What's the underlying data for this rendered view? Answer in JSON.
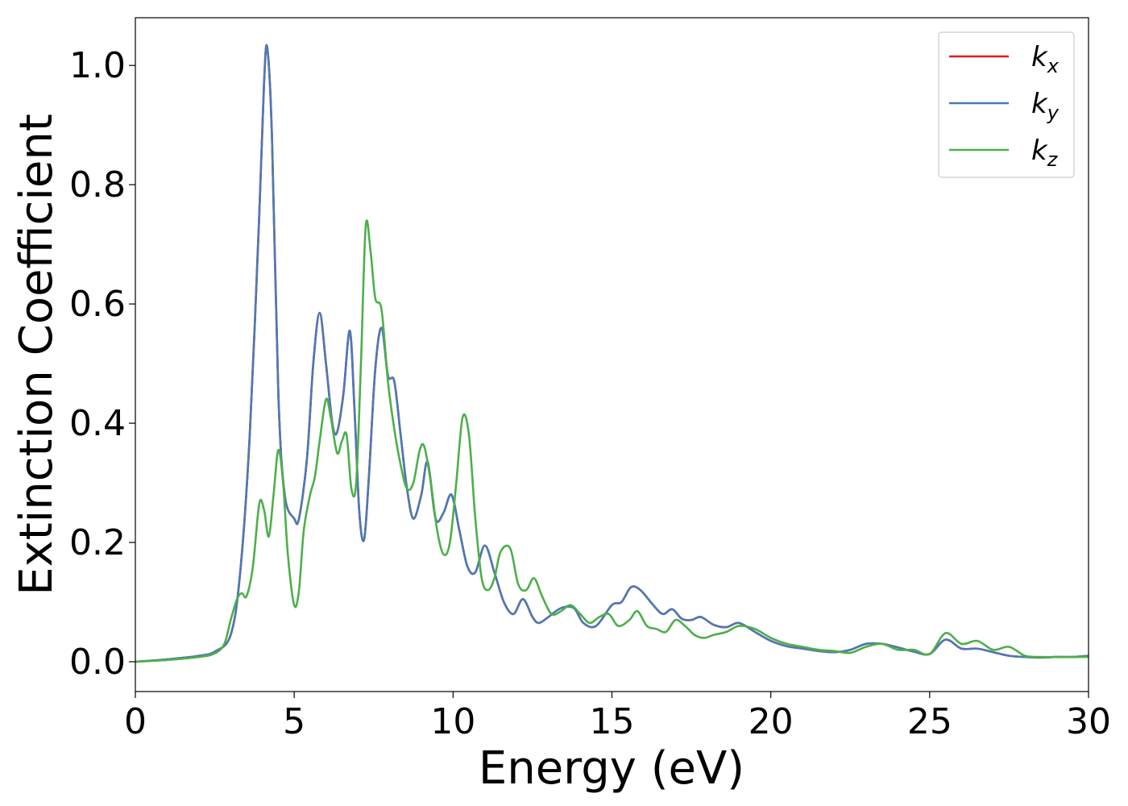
{
  "chart_data": {
    "type": "line",
    "title": "",
    "xlabel": "Energy (eV)",
    "ylabel": "Extinction Coefficient",
    "xlim": [
      0,
      30
    ],
    "ylim": [
      -0.05,
      1.08
    ],
    "xticks": [
      0,
      5,
      10,
      15,
      20,
      25,
      30
    ],
    "xtick_labels": [
      "0",
      "5",
      "10",
      "15",
      "20",
      "25",
      "30"
    ],
    "yticks": [
      0.0,
      0.2,
      0.4,
      0.6,
      0.8,
      1.0
    ],
    "ytick_labels": [
      "0.0",
      "0.2",
      "0.4",
      "0.6",
      "0.8",
      "1.0"
    ],
    "grid": false,
    "legend_position": "top-right",
    "series": [
      {
        "name": "k_x",
        "label_main": "k",
        "label_sub": "x",
        "color": "#e41a1c",
        "x": [
          0,
          1,
          2,
          2.5,
          3,
          3.3,
          3.6,
          3.9,
          4.05,
          4.15,
          4.3,
          4.5,
          4.7,
          5.0,
          5.15,
          5.4,
          5.6,
          5.8,
          6.0,
          6.2,
          6.35,
          6.55,
          6.75,
          6.9,
          7.05,
          7.2,
          7.35,
          7.55,
          7.75,
          7.95,
          8.15,
          8.35,
          8.55,
          8.75,
          9.0,
          9.2,
          9.45,
          9.7,
          9.95,
          10.2,
          10.45,
          10.7,
          11.0,
          11.3,
          11.6,
          11.9,
          12.2,
          12.5,
          12.7,
          13.0,
          13.4,
          13.8,
          14.1,
          14.5,
          15.0,
          15.3,
          15.6,
          15.9,
          16.3,
          16.6,
          16.9,
          17.2,
          17.5,
          17.8,
          18.2,
          18.6,
          19.0,
          19.5,
          20.0,
          20.5,
          21.0,
          21.5,
          22.0,
          22.5,
          23.0,
          23.5,
          24.0,
          24.5,
          25.0,
          25.5,
          26.0,
          26.5,
          27.0,
          27.5,
          28.0,
          28.5,
          29.0,
          29.5,
          30
        ],
        "y": [
          0.0,
          0.004,
          0.01,
          0.017,
          0.045,
          0.15,
          0.38,
          0.75,
          0.97,
          1.03,
          0.88,
          0.45,
          0.28,
          0.24,
          0.24,
          0.34,
          0.5,
          0.585,
          0.5,
          0.4,
          0.385,
          0.45,
          0.555,
          0.42,
          0.25,
          0.205,
          0.31,
          0.49,
          0.56,
          0.48,
          0.47,
          0.38,
          0.29,
          0.24,
          0.28,
          0.335,
          0.24,
          0.25,
          0.28,
          0.22,
          0.16,
          0.15,
          0.195,
          0.15,
          0.1,
          0.08,
          0.105,
          0.075,
          0.065,
          0.075,
          0.09,
          0.09,
          0.065,
          0.06,
          0.095,
          0.1,
          0.125,
          0.12,
          0.095,
          0.08,
          0.088,
          0.072,
          0.07,
          0.075,
          0.062,
          0.058,
          0.065,
          0.05,
          0.035,
          0.026,
          0.022,
          0.018,
          0.016,
          0.02,
          0.03,
          0.03,
          0.024,
          0.017,
          0.013,
          0.037,
          0.022,
          0.022,
          0.016,
          0.01,
          0.008,
          0.007,
          0.008,
          0.008,
          0.01
        ]
      },
      {
        "name": "k_y",
        "label_main": "k",
        "label_sub": "y",
        "color": "#4a7ab5",
        "x": [
          0,
          1,
          2,
          2.5,
          3,
          3.3,
          3.6,
          3.9,
          4.05,
          4.15,
          4.3,
          4.5,
          4.7,
          5.0,
          5.15,
          5.4,
          5.6,
          5.8,
          6.0,
          6.2,
          6.35,
          6.55,
          6.75,
          6.9,
          7.05,
          7.2,
          7.35,
          7.55,
          7.75,
          7.95,
          8.15,
          8.35,
          8.55,
          8.75,
          9.0,
          9.2,
          9.45,
          9.7,
          9.95,
          10.2,
          10.45,
          10.7,
          11.0,
          11.3,
          11.6,
          11.9,
          12.2,
          12.5,
          12.7,
          13.0,
          13.4,
          13.8,
          14.1,
          14.5,
          15.0,
          15.3,
          15.6,
          15.9,
          16.3,
          16.6,
          16.9,
          17.2,
          17.5,
          17.8,
          18.2,
          18.6,
          19.0,
          19.5,
          20.0,
          20.5,
          21.0,
          21.5,
          22.0,
          22.5,
          23.0,
          23.5,
          24.0,
          24.5,
          25.0,
          25.5,
          26.0,
          26.5,
          27.0,
          27.5,
          28.0,
          28.5,
          29.0,
          29.5,
          30
        ],
        "y": [
          0.0,
          0.004,
          0.01,
          0.017,
          0.045,
          0.15,
          0.38,
          0.75,
          0.97,
          1.03,
          0.88,
          0.45,
          0.28,
          0.24,
          0.24,
          0.34,
          0.5,
          0.585,
          0.5,
          0.4,
          0.385,
          0.45,
          0.555,
          0.42,
          0.25,
          0.205,
          0.31,
          0.49,
          0.56,
          0.48,
          0.47,
          0.38,
          0.29,
          0.24,
          0.28,
          0.335,
          0.24,
          0.25,
          0.28,
          0.22,
          0.16,
          0.15,
          0.195,
          0.15,
          0.1,
          0.08,
          0.105,
          0.075,
          0.065,
          0.075,
          0.09,
          0.09,
          0.065,
          0.06,
          0.095,
          0.1,
          0.125,
          0.12,
          0.095,
          0.08,
          0.088,
          0.072,
          0.07,
          0.075,
          0.062,
          0.058,
          0.065,
          0.05,
          0.035,
          0.026,
          0.022,
          0.018,
          0.016,
          0.02,
          0.03,
          0.03,
          0.024,
          0.017,
          0.013,
          0.037,
          0.022,
          0.022,
          0.016,
          0.01,
          0.008,
          0.007,
          0.008,
          0.008,
          0.01
        ]
      },
      {
        "name": "k_z",
        "label_main": "k",
        "label_sub": "z",
        "color": "#4daf4a",
        "x": [
          0,
          1,
          2,
          2.5,
          2.8,
          3.0,
          3.2,
          3.35,
          3.5,
          3.7,
          3.9,
          4.05,
          4.2,
          4.35,
          4.5,
          4.65,
          4.8,
          5.0,
          5.15,
          5.3,
          5.5,
          5.65,
          5.8,
          6.0,
          6.15,
          6.35,
          6.5,
          6.65,
          6.8,
          6.95,
          7.1,
          7.25,
          7.4,
          7.55,
          7.75,
          7.95,
          8.15,
          8.35,
          8.55,
          8.75,
          8.95,
          9.1,
          9.3,
          9.5,
          9.7,
          9.9,
          10.1,
          10.3,
          10.5,
          10.7,
          10.9,
          11.1,
          11.3,
          11.5,
          11.8,
          12.05,
          12.3,
          12.55,
          12.8,
          13.1,
          13.4,
          13.7,
          14.0,
          14.3,
          14.6,
          14.9,
          15.2,
          15.55,
          15.8,
          16.1,
          16.4,
          16.7,
          17.0,
          17.3,
          17.6,
          17.9,
          18.2,
          18.6,
          19.0,
          19.5,
          20.0,
          20.5,
          21.0,
          21.5,
          22.0,
          22.5,
          23.0,
          23.5,
          24.0,
          24.5,
          25.0,
          25.5,
          26.0,
          26.5,
          27.0,
          27.5,
          28.0,
          28.5,
          29.0,
          29.5,
          30
        ],
        "y": [
          0.0,
          0.003,
          0.008,
          0.014,
          0.03,
          0.07,
          0.105,
          0.115,
          0.11,
          0.16,
          0.265,
          0.255,
          0.21,
          0.28,
          0.355,
          0.3,
          0.18,
          0.095,
          0.12,
          0.22,
          0.28,
          0.31,
          0.37,
          0.44,
          0.41,
          0.35,
          0.37,
          0.38,
          0.29,
          0.3,
          0.5,
          0.73,
          0.69,
          0.61,
          0.59,
          0.47,
          0.39,
          0.33,
          0.29,
          0.3,
          0.355,
          0.36,
          0.3,
          0.22,
          0.18,
          0.2,
          0.3,
          0.41,
          0.38,
          0.24,
          0.14,
          0.12,
          0.14,
          0.185,
          0.19,
          0.13,
          0.12,
          0.14,
          0.11,
          0.08,
          0.085,
          0.095,
          0.08,
          0.065,
          0.075,
          0.08,
          0.06,
          0.07,
          0.085,
          0.06,
          0.055,
          0.05,
          0.07,
          0.06,
          0.045,
          0.04,
          0.045,
          0.05,
          0.06,
          0.055,
          0.04,
          0.03,
          0.025,
          0.02,
          0.018,
          0.015,
          0.025,
          0.03,
          0.02,
          0.02,
          0.013,
          0.048,
          0.03,
          0.035,
          0.02,
          0.025,
          0.01,
          0.008,
          0.008,
          0.008,
          0.008
        ]
      }
    ]
  }
}
